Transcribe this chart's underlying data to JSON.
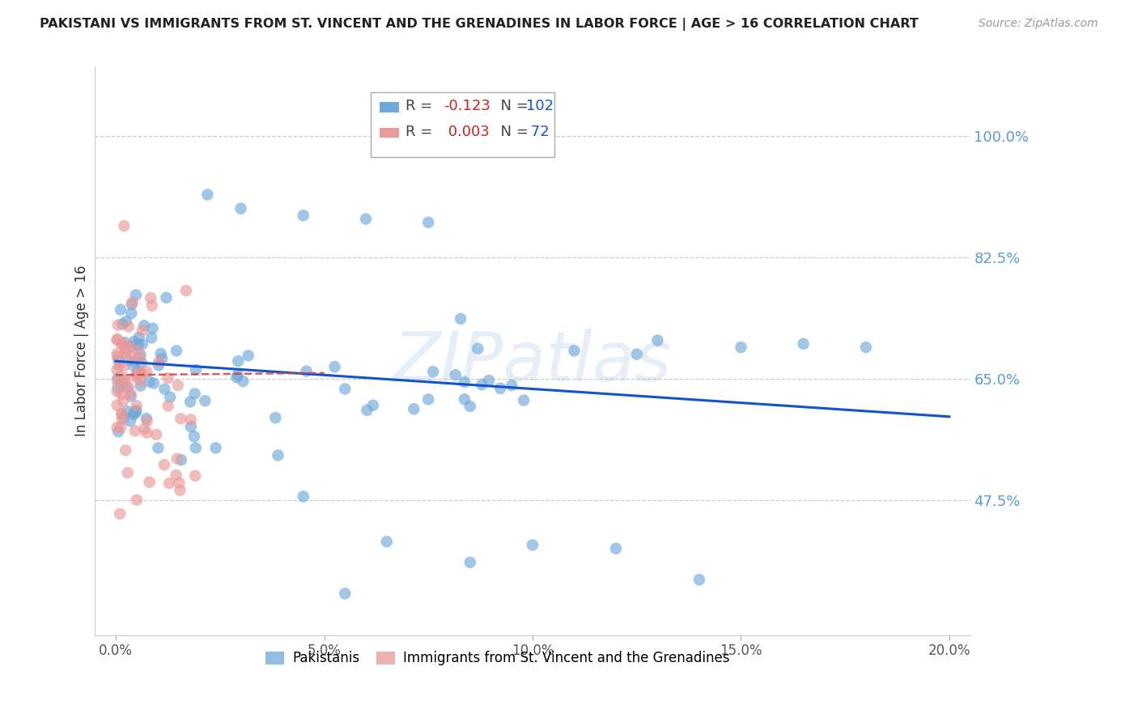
{
  "title": "PAKISTANI VS IMMIGRANTS FROM ST. VINCENT AND THE GRENADINES IN LABOR FORCE | AGE > 16 CORRELATION CHART",
  "source": "Source: ZipAtlas.com",
  "ylabel": "In Labor Force | Age > 16",
  "xlabel_ticks": [
    "0.0%",
    "5.0%",
    "10.0%",
    "15.0%",
    "20.0%"
  ],
  "xlabel_tick_vals": [
    0.0,
    0.05,
    0.1,
    0.15,
    0.2
  ],
  "ylabel_ticks": [
    "100.0%",
    "82.5%",
    "65.0%",
    "47.5%"
  ],
  "ylabel_tick_vals": [
    1.0,
    0.825,
    0.65,
    0.475
  ],
  "xlim": [
    -0.005,
    0.205
  ],
  "ylim": [
    0.28,
    1.1
  ],
  "blue_color": "#6fa8dc",
  "pink_color": "#ea9999",
  "trendline_blue": "#1155cc",
  "trendline_pink": "#cc4444",
  "watermark": "ZIPatlas",
  "legend_r_blue": "-0.123",
  "legend_n_blue": "102",
  "legend_r_pink": "0.003",
  "legend_n_pink": "72",
  "grid_color": "#cccccc",
  "background_color": "#ffffff",
  "blue_trendline_x": [
    0.0,
    0.2
  ],
  "blue_trendline_y": [
    0.675,
    0.595
  ],
  "pink_trendline_x": [
    0.0,
    0.05
  ],
  "pink_trendline_y": [
    0.655,
    0.658
  ]
}
